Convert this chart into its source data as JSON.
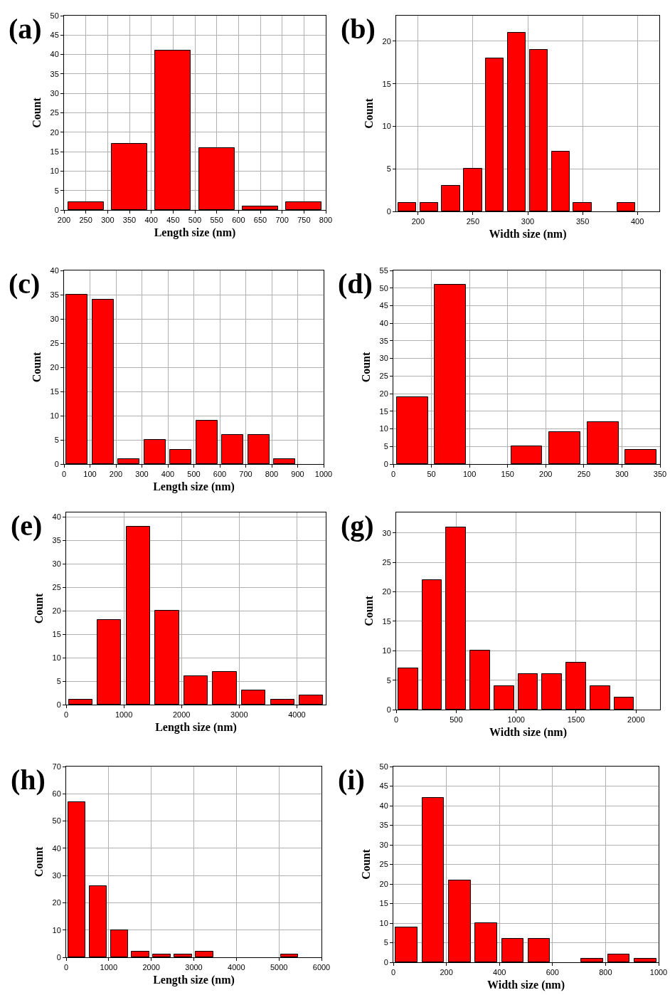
{
  "chart_data": [
    {
      "type": "histogram",
      "title": "(a)",
      "xlabel": "Length size (nm)",
      "ylabel": "Count",
      "color": "#ff0000",
      "grid": true,
      "bins": [
        200,
        300,
        400,
        500,
        600,
        700,
        800
      ],
      "values": [
        2,
        17,
        41,
        16,
        1,
        2
      ],
      "xlim": [
        200,
        800
      ],
      "xticks": [
        200,
        250,
        300,
        350,
        400,
        450,
        500,
        550,
        600,
        650,
        700,
        750,
        800
      ],
      "ylim": [
        0,
        50
      ],
      "yticks": [
        0,
        5,
        10,
        15,
        20,
        25,
        30,
        35,
        40,
        45,
        50
      ]
    },
    {
      "type": "histogram",
      "title": "(b)",
      "xlabel": "Width size (nm)",
      "ylabel": "Count",
      "color": "#ff0000",
      "grid": true,
      "bins": [
        180,
        200,
        220,
        240,
        260,
        280,
        300,
        320,
        340,
        360,
        380,
        400
      ],
      "values": [
        1,
        1,
        3,
        5,
        18,
        21,
        19,
        7,
        1,
        0,
        1
      ],
      "xlim": [
        180,
        420
      ],
      "xticks": [
        200,
        250,
        300,
        350,
        400
      ],
      "ylim": [
        0,
        23
      ],
      "yticks": [
        0,
        5,
        10,
        15,
        20
      ]
    },
    {
      "type": "histogram",
      "title": "(c)",
      "xlabel": "Length size (nm)",
      "ylabel": "Count",
      "color": "#ff0000",
      "grid": true,
      "bins": [
        0,
        100,
        200,
        300,
        400,
        500,
        600,
        700,
        800,
        900
      ],
      "values": [
        35,
        34,
        1,
        5,
        3,
        9,
        6,
        6,
        1
      ],
      "xlim": [
        0,
        1000
      ],
      "xticks": [
        0,
        100,
        200,
        300,
        400,
        500,
        600,
        700,
        800,
        900,
        1000
      ],
      "ylim": [
        0,
        40
      ],
      "yticks": [
        0,
        5,
        10,
        15,
        20,
        25,
        30,
        35,
        40
      ]
    },
    {
      "type": "histogram",
      "title": "(d)",
      "ylabel": "Count",
      "color": "#ff0000",
      "grid": true,
      "bins": [
        0,
        50,
        100,
        150,
        200,
        250,
        300,
        350
      ],
      "values": [
        19,
        51,
        0,
        5,
        9,
        12,
        4
      ],
      "xlim": [
        0,
        350
      ],
      "xticks": [
        0,
        50,
        100,
        150,
        200,
        250,
        300,
        350
      ],
      "ylim": [
        0,
        55
      ],
      "yticks": [
        0,
        5,
        10,
        15,
        20,
        25,
        30,
        35,
        40,
        45,
        50,
        55
      ]
    },
    {
      "type": "histogram",
      "title": "(e)",
      "xlabel": "Length size (nm)",
      "ylabel": "Count",
      "color": "#ff0000",
      "grid": true,
      "bins": [
        0,
        500,
        1000,
        1500,
        2000,
        2500,
        3000,
        3500,
        4000,
        4500
      ],
      "values": [
        1,
        18,
        38,
        20,
        6,
        7,
        3,
        1,
        2
      ],
      "xlim": [
        0,
        4500
      ],
      "xticks": [
        0,
        1000,
        2000,
        3000,
        4000
      ],
      "ylim": [
        0,
        41
      ],
      "yticks": [
        0,
        5,
        10,
        15,
        20,
        25,
        30,
        35,
        40
      ]
    },
    {
      "type": "histogram",
      "title": "(g)",
      "xlabel": "Width size (nm)",
      "ylabel": "Count",
      "color": "#ff0000",
      "grid": true,
      "bins": [
        0,
        200,
        400,
        600,
        800,
        1000,
        1200,
        1400,
        1600,
        1800,
        2000
      ],
      "values": [
        7,
        22,
        31,
        10,
        4,
        6,
        6,
        8,
        4,
        2
      ],
      "xlim": [
        0,
        2200
      ],
      "xticks": [
        0,
        500,
        1000,
        1500,
        2000
      ],
      "ylim": [
        0,
        33.5
      ],
      "yticks": [
        0,
        5,
        10,
        15,
        20,
        25,
        30
      ]
    },
    {
      "type": "histogram",
      "title": "(h)",
      "xlabel": "Length size (nm)",
      "ylabel": "Count",
      "color": "#ff0000",
      "grid": true,
      "bins": [
        0,
        500,
        1000,
        1500,
        2000,
        2500,
        3000,
        3500,
        4000,
        4500,
        5000,
        5500
      ],
      "values": [
        57,
        26,
        10,
        2,
        1,
        1,
        2,
        0,
        0,
        0,
        1
      ],
      "xlim": [
        0,
        6000
      ],
      "xticks": [
        0,
        1000,
        2000,
        3000,
        4000,
        5000,
        6000
      ],
      "ylim": [
        0,
        70
      ],
      "yticks": [
        0,
        10,
        20,
        30,
        40,
        50,
        60,
        70
      ]
    },
    {
      "type": "histogram",
      "title": "(i)",
      "xlabel": "Width size (nm)",
      "ylabel": "Count",
      "color": "#ff0000",
      "grid": true,
      "bins": [
        0,
        100,
        200,
        300,
        400,
        500,
        600,
        700,
        800,
        900,
        1000
      ],
      "values": [
        9,
        42,
        21,
        10,
        6,
        6,
        0,
        1,
        2,
        1
      ],
      "xlim": [
        0,
        1000
      ],
      "xticks": [
        0,
        200,
        400,
        600,
        800,
        1000
      ],
      "ylim": [
        0,
        50
      ],
      "yticks": [
        0,
        5,
        10,
        15,
        20,
        25,
        30,
        35,
        40,
        45,
        50
      ]
    }
  ]
}
